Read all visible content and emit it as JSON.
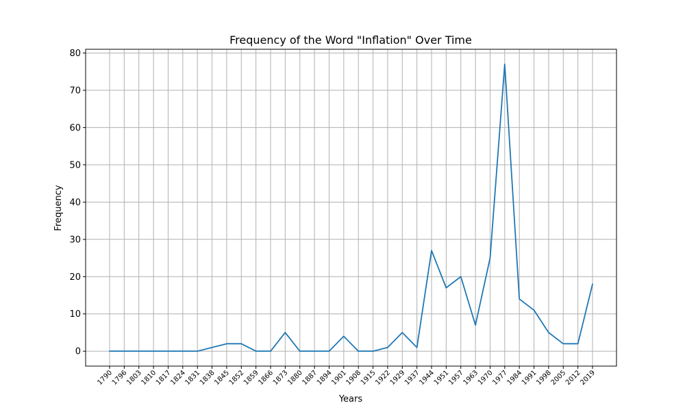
{
  "chart_data": {
    "type": "line",
    "title": "Frequency of the Word \"Inflation\" Over Time",
    "xlabel": "Years",
    "ylabel": "Frequency",
    "ylim": [
      -4,
      81
    ],
    "yticks": [
      0,
      10,
      20,
      30,
      40,
      50,
      60,
      70,
      80
    ],
    "grid": true,
    "legend": "none",
    "categories": [
      "1790",
      "1796",
      "1803",
      "1810",
      "1817",
      "1824",
      "1831",
      "1838",
      "1845",
      "1852",
      "1859",
      "1866",
      "1873",
      "1880",
      "1887",
      "1894",
      "1901",
      "1908",
      "1915",
      "1922",
      "1929",
      "1937",
      "1944",
      "1951",
      "1957",
      "1963",
      "1970",
      "1977",
      "1984",
      "1991",
      "1998",
      "2005",
      "2012",
      "2019"
    ],
    "series": [
      {
        "color": "#1f77b4",
        "values": [
          0,
          0,
          0,
          0,
          0,
          0,
          0,
          1,
          2,
          2,
          0,
          0,
          5,
          0,
          0,
          0,
          4,
          0,
          0,
          1,
          5,
          1,
          27,
          17,
          20,
          7,
          25,
          77,
          14,
          11,
          5,
          2,
          2,
          18
        ]
      }
    ]
  }
}
